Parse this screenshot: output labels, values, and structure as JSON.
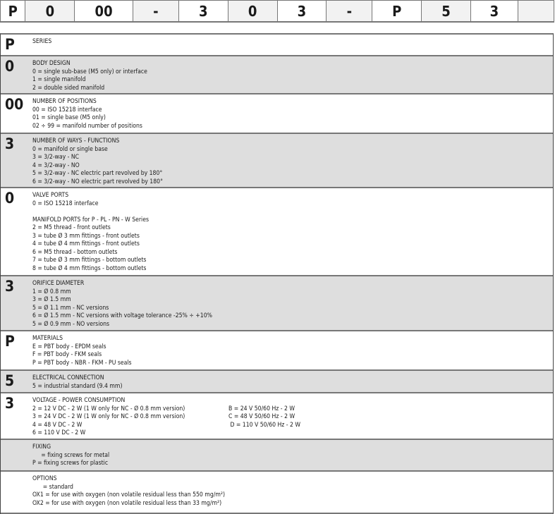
{
  "code_bar": [
    "P",
    "0",
    "00",
    "-",
    "3",
    "0",
    "3",
    "-",
    "P",
    "5",
    "3",
    ""
  ],
  "rows": [
    {
      "code": "P",
      "title": "SERIES",
      "lines": []
    },
    {
      "code": "0",
      "title": "BODY DESIGN",
      "lines": [
        "0 = single sub-base (M5 only) or interface",
        "1 = single manifold",
        "2 = double sided manifold"
      ]
    },
    {
      "code": "00",
      "title": "NUMBER OF POSITIONS",
      "lines": [
        "00 = ISO 15218 interface",
        "01 = single base (M5 only)",
        "02 ÷ 99 = manifold number of positions"
      ]
    },
    {
      "code": "3",
      "title": "NUMBER OF WAYS - FUNCTIONS",
      "lines": [
        "0 = manifold or single base",
        "3 = 3/2-way - NC",
        "4 = 3/2-way - NO",
        "5 = 3/2-way - NC electric part revolved by 180°",
        "6 = 3/2-way - NO electric part revolved by 180°"
      ]
    },
    {
      "code": "0",
      "title": "VALVE PORTS",
      "lines": [
        "0 = ISO 15218 interface",
        "",
        "MANIFOLD PORTS for P - PL - PN - W Series",
        "2 = M5 thread - front outlets",
        "3 = tube Ø 3 mm fittings - front outlets",
        "4 = tube Ø 4 mm fittings - front outlets",
        "6 = M5 thread - bottom outlets",
        "7 = tube Ø 3 mm fittings - bottom outlets",
        "8 = tube Ø 4 mm fittings - bottom outlets"
      ]
    },
    {
      "code": "3",
      "title": "ORIFICE DIAMETER",
      "lines": [
        "1 = Ø 0.8 mm",
        "3 = Ø 1.5 mm",
        "5 = Ø 1.1 mm - NC versions",
        "6 = Ø 1.5 mm - NC versions with voltage tolerance -25% ÷ +10%",
        "5 = Ø 0.9 mm - NO versions"
      ]
    },
    {
      "code": "P",
      "title": "MATERIALS",
      "lines": [
        "E = PBT body - EPDM seals",
        "F = PBT body - FKM seals",
        "P = PBT body - NBR - FKM - PU seals"
      ]
    },
    {
      "code": "5",
      "title": "ELECTRICAL CONNECTION",
      "lines": [
        "5 = industrial standard (9.4 mm)"
      ]
    },
    {
      "code": "3",
      "title": "VOLTAGE - POWER CONSUMPTION",
      "lines": [
        "2 = 12 V DC - 2 W (1 W only for NC - Ø 0.8 mm version)",
        "3 = 24 V DC - 2 W (1 W only for NC - Ø 0.8 mm version)",
        "4 = 48 V DC - 2 W",
        "6 = 110 V DC - 2 W"
      ],
      "lines2": [
        "B = 24 V 50/60 Hz - 2 W",
        "C = 48 V 50/60 Hz - 2 W",
        " D = 110 V 50/60 Hz - 2 W"
      ]
    },
    {
      "code": "",
      "title": "FIXING",
      "lines": [
        "     = fixing screws for metal",
        "P = fixing screws for plastic"
      ]
    },
    {
      "code": "",
      "title": "OPTIONS",
      "lines": [
        "      = standard",
        "OX1 = for use with oxygen (non volatile residual less than 550 mg/m²)",
        "OX2 = for use with oxygen (non volatile residual less than 33 mg/m²)"
      ]
    }
  ]
}
